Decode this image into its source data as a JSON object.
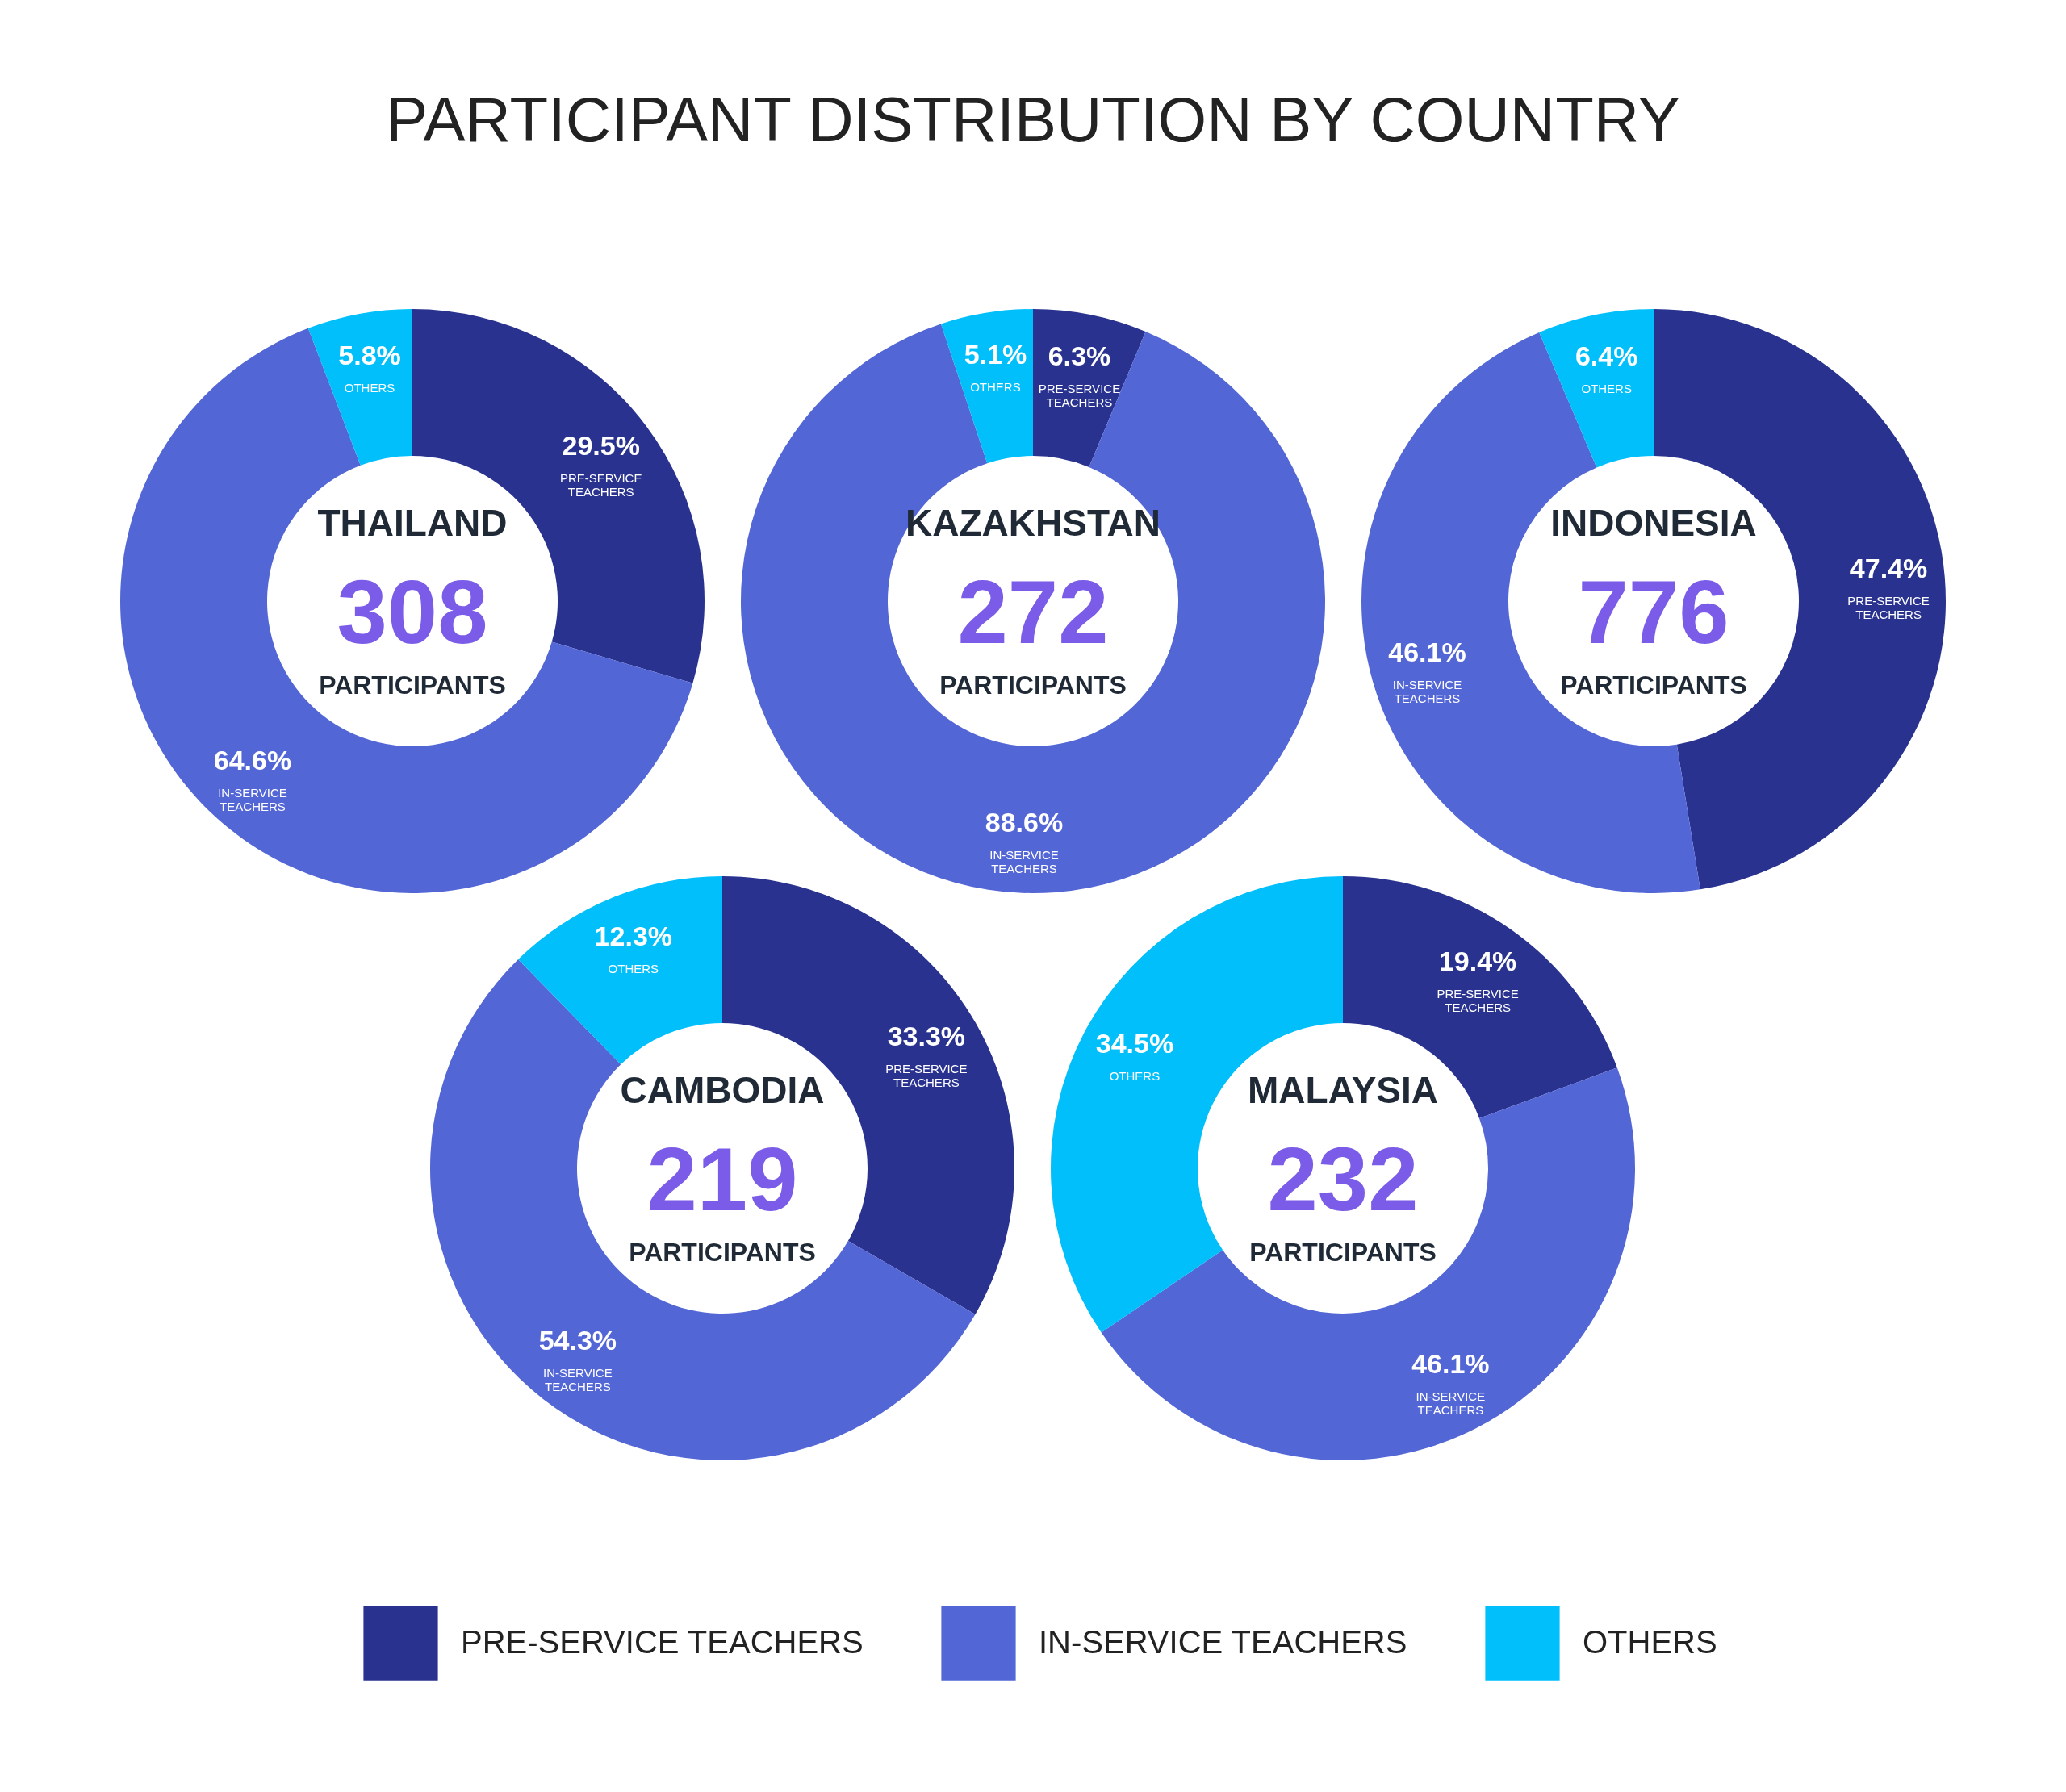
{
  "chart_data": [
    {
      "type": "other",
      "title": "PARTICIPANT DISTRIBUTION BY COUNTRY"
    },
    {
      "type": "donut",
      "title": "THAILAND",
      "annotations": [
        "308",
        "PARTICIPANTS"
      ],
      "categories": [
        "PRE-SERVICE TEACHERS",
        "IN-SERVICE TEACHERS",
        "OTHERS"
      ],
      "values": [
        29.5,
        64.6,
        5.8
      ],
      "value_labels": [
        "29.5%",
        "64.6%",
        "5.8%"
      ],
      "colors": [
        "#29338f",
        "#5366d6",
        "#00bffb"
      ]
    },
    {
      "type": "donut",
      "title": "KAZAKHSTAN",
      "annotations": [
        "272",
        "PARTICIPANTS"
      ],
      "categories": [
        "PRE-SERVICE TEACHERS",
        "IN-SERVICE TEACHERS",
        "OTHERS"
      ],
      "values": [
        6.3,
        88.6,
        5.1
      ],
      "value_labels": [
        "6.3%",
        "88.6%",
        "5.1%"
      ],
      "colors": [
        "#29338f",
        "#5366d6",
        "#00bffb"
      ]
    },
    {
      "type": "donut",
      "title": "INDONESIA",
      "annotations": [
        "776",
        "PARTICIPANTS"
      ],
      "categories": [
        "PRE-SERVICE TEACHERS",
        "IN-SERVICE TEACHERS",
        "OTHERS"
      ],
      "values": [
        47.4,
        46.1,
        6.4
      ],
      "value_labels": [
        "47.4%",
        "46.1%",
        "6.4%"
      ],
      "colors": [
        "#29338f",
        "#5366d6",
        "#00bffb"
      ]
    },
    {
      "type": "donut",
      "title": "CAMBODIA",
      "annotations": [
        "219",
        "PARTICIPANTS"
      ],
      "categories": [
        "PRE-SERVICE TEACHERS",
        "IN-SERVICE TEACHERS",
        "OTHERS"
      ],
      "values": [
        33.3,
        54.3,
        12.3
      ],
      "value_labels": [
        "33.3%",
        "54.3%",
        "12.3%"
      ],
      "colors": [
        "#29338f",
        "#5366d6",
        "#00bffb"
      ]
    },
    {
      "type": "donut",
      "title": "MALAYSIA",
      "annotations": [
        "232",
        "PARTICIPANTS"
      ],
      "categories": [
        "PRE-SERVICE TEACHERS",
        "IN-SERVICE TEACHERS",
        "OTHERS"
      ],
      "values": [
        19.4,
        46.1,
        34.5
      ],
      "value_labels": [
        "19.4%",
        "46.1%",
        "34.5%"
      ],
      "colors": [
        "#29338f",
        "#5366d6",
        "#00bffb"
      ],
      "legend": "bottom"
    }
  ]
}
